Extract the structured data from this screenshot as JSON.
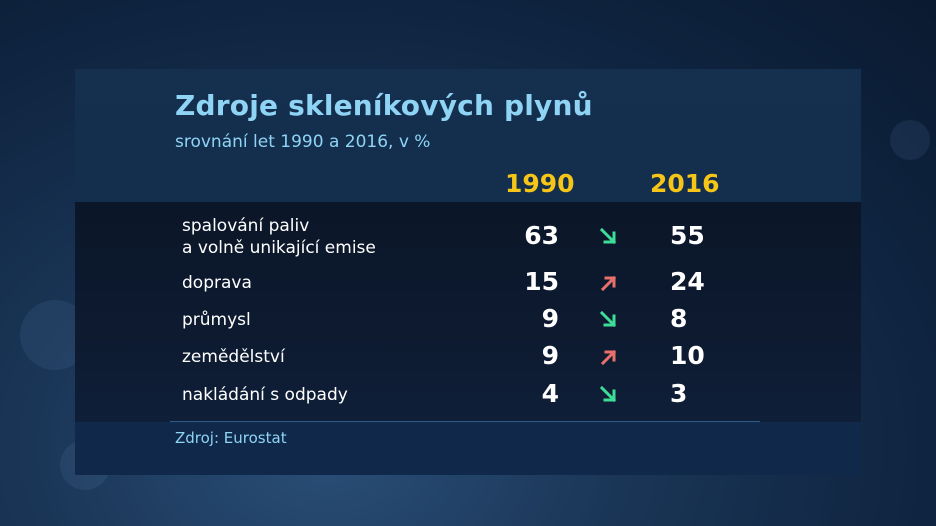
{
  "chart_data": {
    "type": "table",
    "title": "Zdroje skleníkových plynů",
    "subtitle": "srovnání let 1990 a 2016, v %",
    "columns": [
      "1990",
      "2016"
    ],
    "rows": [
      {
        "label_lines": [
          "spalování paliv",
          "a volně unikající emise"
        ],
        "v1990": "63",
        "v2016": "55",
        "trend": "down"
      },
      {
        "label_lines": [
          "doprava"
        ],
        "v1990": "15",
        "v2016": "24",
        "trend": "up"
      },
      {
        "label_lines": [
          "průmysl"
        ],
        "v1990": "9",
        "v2016": "8",
        "trend": "down"
      },
      {
        "label_lines": [
          "zemědělství"
        ],
        "v1990": "9",
        "v2016": "10",
        "trend": "up"
      },
      {
        "label_lines": [
          "nakládání s odpady"
        ],
        "v1990": "4",
        "v2016": "3",
        "trend": "down"
      }
    ],
    "source": "Zdroj: Eurostat"
  },
  "colors": {
    "title": "#8fd4f5",
    "year": "#f5c518",
    "down_arrow": "#3ddc97",
    "up_arrow": "#e8706a"
  }
}
